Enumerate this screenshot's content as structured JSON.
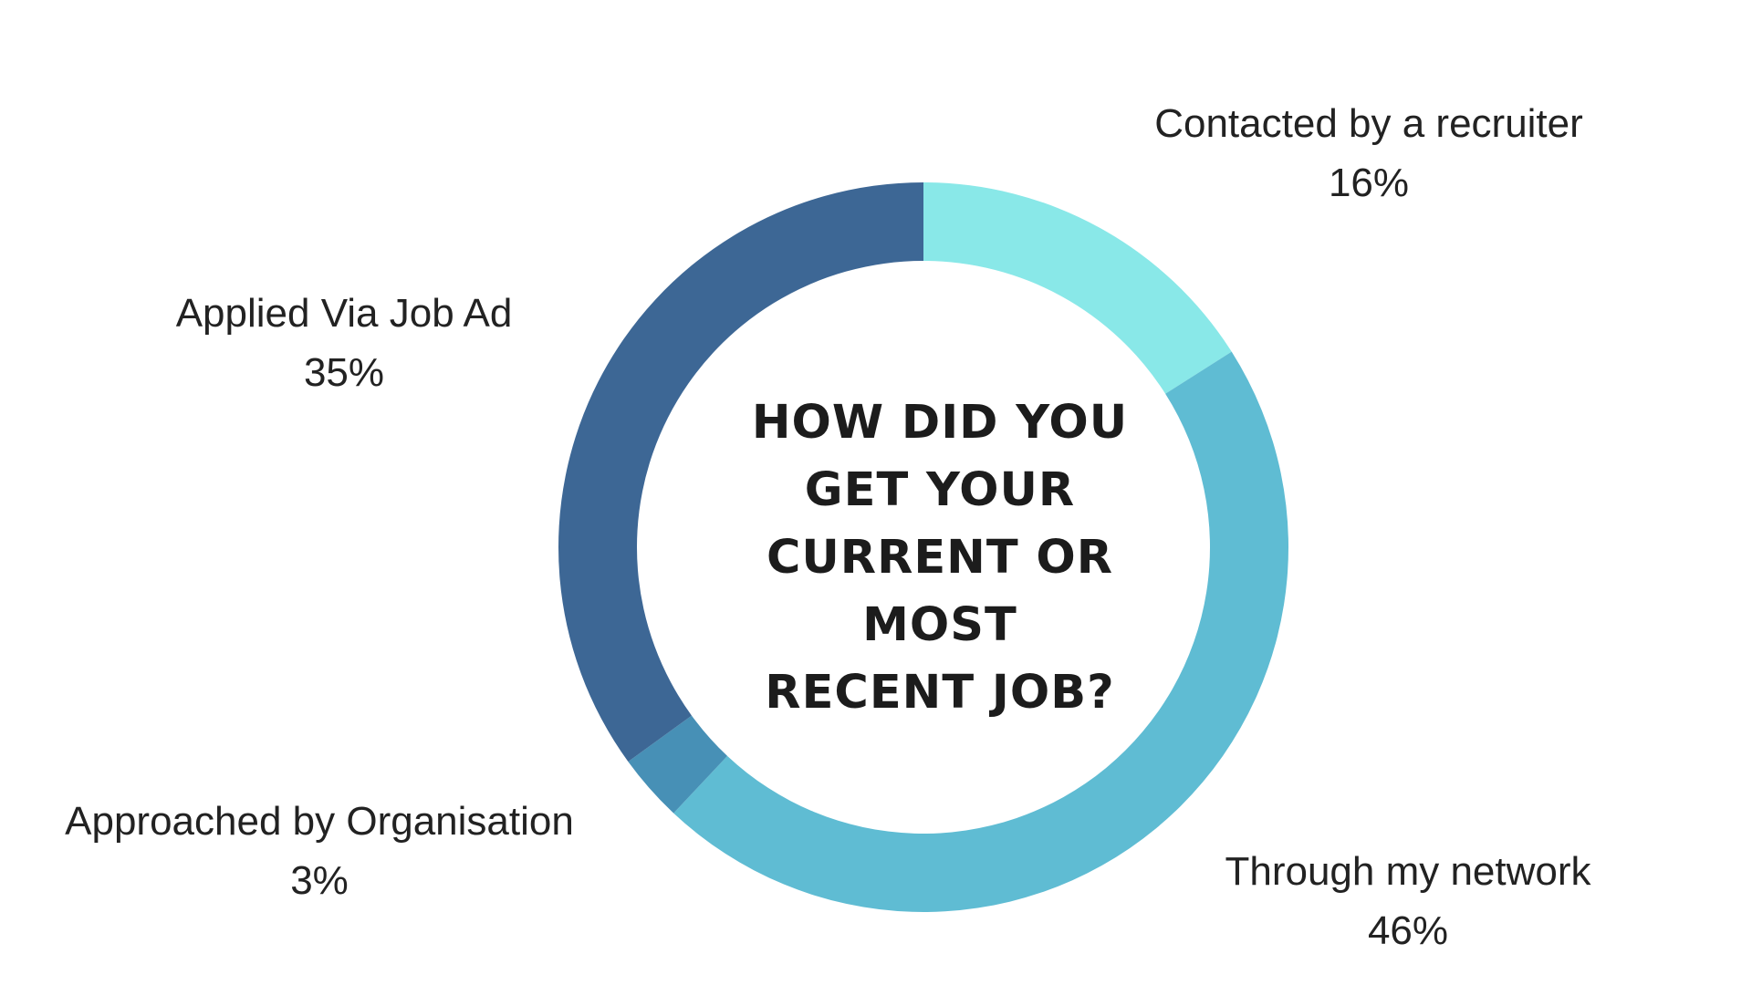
{
  "chart_data": {
    "type": "pie",
    "donut": true,
    "title_lines": [
      "HOW DID YOU",
      "GET YOUR",
      "CURRENT OR",
      "MOST",
      "RECENT JOB?"
    ],
    "slices": [
      {
        "name": "Contacted by a recruiter",
        "value": 16,
        "value_label": "16%",
        "color": "#89e8e8"
      },
      {
        "name": "Through my network",
        "value": 46,
        "value_label": "46%",
        "color": "#5fbcd3"
      },
      {
        "name": "Approached by Organisation",
        "value": 3,
        "value_label": "3%",
        "color": "#4790b6"
      },
      {
        "name": "Applied Via Job Ad",
        "value": 35,
        "value_label": "35%",
        "color": "#3d6795"
      }
    ],
    "start_position": "top",
    "direction": "clockwise",
    "legend": "none"
  }
}
